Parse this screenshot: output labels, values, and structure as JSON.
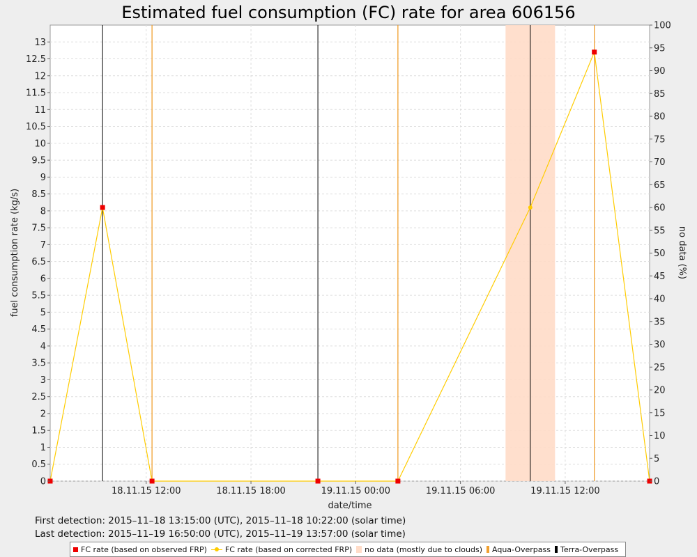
{
  "chart_data": {
    "type": "line",
    "title": "Estimated fuel consumption (FC) rate for area 606156",
    "xlabel": "date/time",
    "ylabel": "fuel consumption rate (kg/s)",
    "y2label": "no data (%)",
    "xlim": [
      "2015-11-18 06:30",
      "2015-11-19 16:50"
    ],
    "ylim": [
      0,
      13.5
    ],
    "y2lim": [
      0,
      100
    ],
    "x_ticks": [
      {
        "label": "18.11.15 12:00",
        "x": "2015-11-18 12:00"
      },
      {
        "label": "18.11.15 18:00",
        "x": "2015-11-18 18:00"
      },
      {
        "label": "19.11.15 00:00",
        "x": "2015-11-19 00:00"
      },
      {
        "label": "19.11.15 06:00",
        "x": "2015-11-19 06:00"
      },
      {
        "label": "19.11.15 12:00",
        "x": "2015-11-19 12:00"
      }
    ],
    "y_ticks": [
      "0",
      "0.5",
      "1",
      "1.5",
      "2",
      "2.5",
      "3",
      "3.5",
      "4",
      "4.5",
      "5",
      "5.5",
      "6",
      "6.5",
      "7",
      "7.5",
      "8",
      "8.5",
      "9",
      "9.5",
      "10",
      "10.5",
      "11",
      "11.5",
      "12",
      "12.5",
      "13"
    ],
    "y2_ticks": [
      "0",
      "5",
      "10",
      "15",
      "20",
      "25",
      "30",
      "35",
      "40",
      "45",
      "50",
      "55",
      "60",
      "65",
      "70",
      "75",
      "80",
      "85",
      "90",
      "95",
      "100"
    ],
    "series": [
      {
        "name": "FC rate (based on observed FRP)",
        "color": "#ee0000",
        "marker": "square",
        "points": [
          {
            "x": "2015-11-18 06:30",
            "y": 0
          },
          {
            "x": "2015-11-18 09:30",
            "y": 8.1
          },
          {
            "x": "2015-11-18 12:20",
            "y": 0
          },
          {
            "x": "2015-11-18 21:50",
            "y": 0
          },
          {
            "x": "2015-11-19 02:25",
            "y": 0
          },
          {
            "x": "2015-11-19 16:50",
            "y": 0
          },
          {
            "x": "2015-11-19 13:40",
            "y": 12.7
          }
        ]
      },
      {
        "name": "FC rate (based on corrected FRP)",
        "color": "#ffcc00",
        "marker": "circle",
        "points": [
          {
            "x": "2015-11-18 06:30",
            "y": 0
          },
          {
            "x": "2015-11-18 09:30",
            "y": 8.1
          },
          {
            "x": "2015-11-18 12:20",
            "y": 0
          },
          {
            "x": "2015-11-18 21:50",
            "y": 0
          },
          {
            "x": "2015-11-19 02:25",
            "y": 0
          },
          {
            "x": "2015-11-19 10:00",
            "y": 8.1
          },
          {
            "x": "2015-11-19 13:40",
            "y": 12.7
          },
          {
            "x": "2015-11-19 16:50",
            "y": 0
          }
        ]
      }
    ],
    "no_data_band": {
      "name": "no data (mostly due to clouds)",
      "color": "#ffdcc8",
      "from": "2015-11-19 08:35",
      "to": "2015-11-19 11:25",
      "value": 100
    },
    "aqua_overpasses": {
      "name": "Aqua-Overpass",
      "color": "#f0a030",
      "times": [
        "2015-11-18 12:20",
        "2015-11-19 02:25",
        "2015-11-19 13:40"
      ]
    },
    "terra_overpasses": {
      "name": "Terra-Overpass",
      "color": "#000000",
      "times": [
        "2015-11-18 09:30",
        "2015-11-18 21:50",
        "2015-11-19 10:00"
      ]
    }
  },
  "info": {
    "first_detection": "First detection: 2015–11–18 13:15:00 (UTC), 2015–11–18 10:22:00 (solar time)",
    "last_detection": "Last detection: 2015–11–19 16:50:00 (UTC), 2015–11–19 13:57:00 (solar time)"
  },
  "legend": {
    "observed": "FC rate (based on observed FRP)",
    "corrected": "FC rate (based on corrected FRP)",
    "no_data": "no data (mostly due to clouds)",
    "aqua": "Aqua-Overpass",
    "terra": "Terra-Overpass"
  },
  "colors": {
    "observed": "#ee0000",
    "corrected": "#ffcc00",
    "no_data": "#ffdcc8",
    "aqua": "#f0a030",
    "terra": "#000000"
  }
}
